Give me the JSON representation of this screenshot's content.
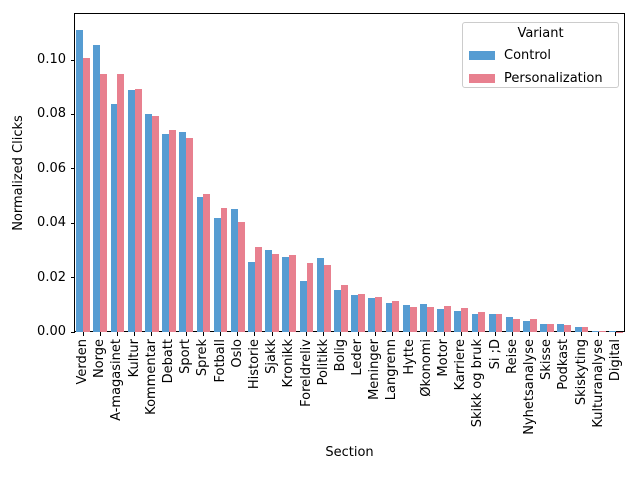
{
  "figure": {
    "xlabel": "Section",
    "ylabel": "Normalized Clicks",
    "background": "#ffffff",
    "axis_color": "#000000",
    "legend_border_color": "#cccccc"
  },
  "chart_data": {
    "type": "bar",
    "title": "",
    "xlabel": "Section",
    "ylabel": "Normalized Clicks",
    "legend_title": "Variant",
    "legend_position": "upper right",
    "grid": false,
    "ylim": [
      0,
      0.117
    ],
    "ytick_values": [
      0.0,
      0.02,
      0.04,
      0.06,
      0.08,
      0.1
    ],
    "ytick_labels": [
      "0.00",
      "0.02",
      "0.04",
      "0.06",
      "0.08",
      "0.10"
    ],
    "categories": [
      "Verden",
      "Norge",
      "A-magasinet",
      "Kultur",
      "Kommentar",
      "Debatt",
      "Sport",
      "Sprek",
      "Fotball",
      "Oslo",
      "Historie",
      "Sjakk",
      "Kronikk",
      "Foreldreliv",
      "Politikk",
      "Bolig",
      "Leder",
      "Meninger",
      "Langrenn",
      "Hytte",
      "Økonomi",
      "Motor",
      "Karriere",
      "Skikk og bruk",
      "Si ;D",
      "Reise",
      "Nyhetsanalyse",
      "Skisse",
      "Podkast",
      "Skiskyting",
      "Kulturanalyse",
      "Digital"
    ],
    "series": [
      {
        "name": "Control",
        "color": "#569CD2",
        "values": [
          0.111,
          0.1056,
          0.0837,
          0.0889,
          0.0801,
          0.0728,
          0.0735,
          0.0496,
          0.0418,
          0.0452,
          0.0256,
          0.03,
          0.0276,
          0.0188,
          0.0273,
          0.0154,
          0.0135,
          0.0125,
          0.0105,
          0.0098,
          0.0102,
          0.0085,
          0.0077,
          0.0066,
          0.0065,
          0.0054,
          0.0042,
          0.0028,
          0.003,
          0.0017,
          0.0003,
          0.0002
        ]
      },
      {
        "name": "Personalization",
        "color": "#E8808F",
        "values": [
          0.1006,
          0.0947,
          0.0948,
          0.0895,
          0.0795,
          0.0743,
          0.0714,
          0.0506,
          0.0457,
          0.0403,
          0.0312,
          0.0288,
          0.0283,
          0.0254,
          0.0246,
          0.0172,
          0.014,
          0.0128,
          0.0115,
          0.0093,
          0.0093,
          0.0095,
          0.0088,
          0.0072,
          0.0065,
          0.0047,
          0.0047,
          0.0029,
          0.0027,
          0.0019,
          0.0002,
          0.0001
        ]
      }
    ]
  }
}
